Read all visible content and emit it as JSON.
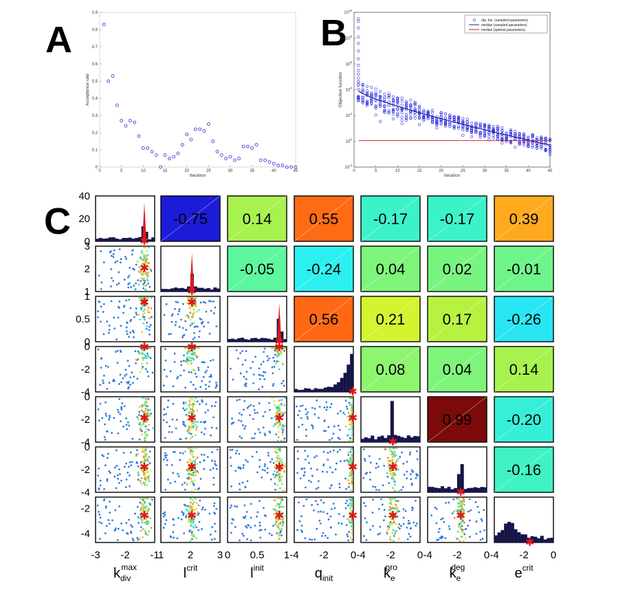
{
  "chart_data": [
    {
      "panel": "A",
      "type": "scatter",
      "title": "",
      "xlabel": "Iteration",
      "ylabel": "Acceptance rate",
      "xlim": [
        0,
        45
      ],
      "ylim": [
        0,
        0.9
      ],
      "xticks": [
        "0",
        "5",
        "10",
        "15",
        "20",
        "25",
        "30",
        "35",
        "40",
        "45"
      ],
      "yticks": [
        "0",
        "0.1",
        "0.2",
        "0.3",
        "0.4",
        "0.5",
        "0.6",
        "0.7",
        "0.8",
        "0.9"
      ],
      "marker_color": "#2b2bdc",
      "x": [
        1,
        2,
        3,
        4,
        5,
        6,
        7,
        8,
        9,
        10,
        11,
        12,
        13,
        14,
        15,
        16,
        17,
        18,
        19,
        20,
        21,
        22,
        23,
        24,
        25,
        26,
        27,
        28,
        29,
        30,
        31,
        32,
        33,
        34,
        35,
        36,
        37,
        38,
        39,
        40,
        41,
        42,
        43,
        44,
        45
      ],
      "y": [
        0.83,
        0.5,
        0.53,
        0.36,
        0.27,
        0.24,
        0.27,
        0.26,
        0.18,
        0.11,
        0.11,
        0.09,
        0.07,
        0.0,
        0.07,
        0.05,
        0.06,
        0.08,
        0.13,
        0.19,
        0.16,
        0.22,
        0.22,
        0.21,
        0.25,
        0.15,
        0.09,
        0.07,
        0.05,
        0.06,
        0.04,
        0.05,
        0.12,
        0.12,
        0.11,
        0.13,
        0.04,
        0.04,
        0.03,
        0.02,
        0.01,
        0.01,
        0.0,
        0.0,
        0.0
      ]
    },
    {
      "panel": "B",
      "type": "scatter",
      "title": "",
      "xlabel": "Iteration",
      "ylabel": "Objective function",
      "xlim": [
        0,
        45
      ],
      "ylim_log10": [
        -2,
        10
      ],
      "xticks": [
        "0",
        "5",
        "10",
        "15",
        "20",
        "25",
        "30",
        "35",
        "40",
        "45"
      ],
      "ytick_exponents": [
        "-2",
        "0",
        "2",
        "4",
        "6",
        "8",
        "10"
      ],
      "ytick_base": "10",
      "legend_position": "top-right",
      "series": [
        {
          "name": "obj. fun. (sampled parameters)",
          "style": "markers",
          "color": "#2b2bdc",
          "median_log10_start": 3.9,
          "median_log10_end": -0.3
        },
        {
          "name": "median (sampled parameters)",
          "style": "line",
          "color": "#1a1aa8"
        },
        {
          "name": "median (optimal parameters)",
          "style": "line",
          "color": "#d41a1a",
          "log10_value": 0.05
        }
      ],
      "outliers_iteration1_log10": [
        9.5,
        9.3,
        8.8,
        8.1,
        7.6,
        7.0,
        6.4,
        5.9,
        5.5,
        5.2,
        4.9,
        4.6
      ]
    },
    {
      "panel": "C",
      "type": "scatter-matrix",
      "parameters": [
        {
          "main": "k",
          "sup": "max",
          "sub": "div",
          "range": [
            -3,
            -1
          ],
          "ticks": [
            "-3",
            "-2",
            "-1"
          ],
          "opt": -1.35
        },
        {
          "main": "l",
          "sup": "crit",
          "sub": "",
          "range": [
            1,
            3
          ],
          "ticks": [
            "1",
            "2",
            "3"
          ],
          "opt": 2.05
        },
        {
          "main": "l",
          "sup": "init",
          "sub": "",
          "range": [
            0,
            1.2
          ],
          "ticks": [
            "0",
            "0.5",
            "1"
          ],
          "opt": 1.05
        },
        {
          "main": "q",
          "sup": "",
          "sub": "init",
          "range": [
            -5,
            0
          ],
          "ticks": [
            "-4",
            "-2",
            "0"
          ],
          "opt": -0.05
        },
        {
          "main": "k",
          "sup": "pro",
          "sub": "e",
          "range": [
            -5,
            0
          ],
          "ticks": [
            "-4",
            "-2",
            "0"
          ],
          "opt": -2.3
        },
        {
          "main": "k",
          "sup": "deg",
          "sub": "e",
          "range": [
            -5,
            0
          ],
          "ticks": [
            "-4",
            "-2",
            "0"
          ],
          "opt": -2.2
        },
        {
          "main": "e",
          "sup": "crit",
          "sub": "",
          "range": [
            -5,
            0
          ],
          "ticks": [
            "-4",
            "-2",
            "0"
          ],
          "opt": -2.0
        }
      ],
      "correlations": [
        {
          "row": 0,
          "col": 1,
          "value": -0.75,
          "label": "-0.75",
          "color": "#1c1cd8"
        },
        {
          "row": 0,
          "col": 2,
          "value": 0.14,
          "label": "0.14",
          "color": "#a8f24f"
        },
        {
          "row": 0,
          "col": 3,
          "value": 0.55,
          "label": "0.55",
          "color": "#ff6a14"
        },
        {
          "row": 0,
          "col": 4,
          "value": -0.17,
          "label": "-0.17",
          "color": "#3cf2c8"
        },
        {
          "row": 0,
          "col": 5,
          "value": -0.17,
          "label": "-0.17",
          "color": "#3cf2c8"
        },
        {
          "row": 0,
          "col": 6,
          "value": 0.39,
          "label": "0.39",
          "color": "#ffaa1e"
        },
        {
          "row": 1,
          "col": 2,
          "value": -0.05,
          "label": "-0.05",
          "color": "#5cf79e"
        },
        {
          "row": 1,
          "col": 3,
          "value": -0.24,
          "label": "-0.24",
          "color": "#2cf0f0"
        },
        {
          "row": 1,
          "col": 4,
          "value": 0.04,
          "label": "0.04",
          "color": "#7ef57a"
        },
        {
          "row": 1,
          "col": 5,
          "value": 0.02,
          "label": "0.02",
          "color": "#78f580"
        },
        {
          "row": 1,
          "col": 6,
          "value": -0.01,
          "label": "-0.01",
          "color": "#6ef58a"
        },
        {
          "row": 2,
          "col": 3,
          "value": 0.56,
          "label": "0.56",
          "color": "#ff6814"
        },
        {
          "row": 2,
          "col": 4,
          "value": 0.21,
          "label": "0.21",
          "color": "#d2f530"
        },
        {
          "row": 2,
          "col": 5,
          "value": 0.17,
          "label": "0.17",
          "color": "#b8f240"
        },
        {
          "row": 2,
          "col": 6,
          "value": -0.26,
          "label": "-0.26",
          "color": "#28e6f2"
        },
        {
          "row": 3,
          "col": 4,
          "value": 0.08,
          "label": "0.08",
          "color": "#8ef56e"
        },
        {
          "row": 3,
          "col": 5,
          "value": 0.04,
          "label": "0.04",
          "color": "#7ef57a"
        },
        {
          "row": 3,
          "col": 6,
          "value": 0.14,
          "label": "0.14",
          "color": "#a8f24f"
        },
        {
          "row": 4,
          "col": 5,
          "value": 0.99,
          "label": "0.99",
          "color": "#7c0a0a"
        },
        {
          "row": 4,
          "col": 6,
          "value": -0.2,
          "label": "-0.20",
          "color": "#36efd8"
        },
        {
          "row": 5,
          "col": 6,
          "value": -0.16,
          "label": "-0.16",
          "color": "#40f2c4"
        }
      ],
      "row_axis_ticks": [
        {
          "row": 0,
          "ticks": [
            "0",
            "20",
            "40"
          ]
        },
        {
          "row": 1,
          "ticks": [
            "1",
            "2",
            "3"
          ]
        },
        {
          "row": 2,
          "ticks": [
            "0",
            "0.5",
            "1"
          ]
        },
        {
          "row": 3,
          "ticks": [
            "-4",
            "-2",
            "0"
          ]
        },
        {
          "row": 4,
          "ticks": [
            "-4",
            "-2",
            "0"
          ]
        },
        {
          "row": 5,
          "ticks": [
            "-4",
            "-2",
            "0"
          ]
        },
        {
          "row": 6,
          "ticks": [
            "-4",
            "-2"
          ]
        }
      ],
      "histogram_bars_color": "#141446",
      "optimum_marker_color": "#e01818"
    }
  ],
  "panel_labels": {
    "a": "A",
    "b": "B",
    "c": "C"
  }
}
